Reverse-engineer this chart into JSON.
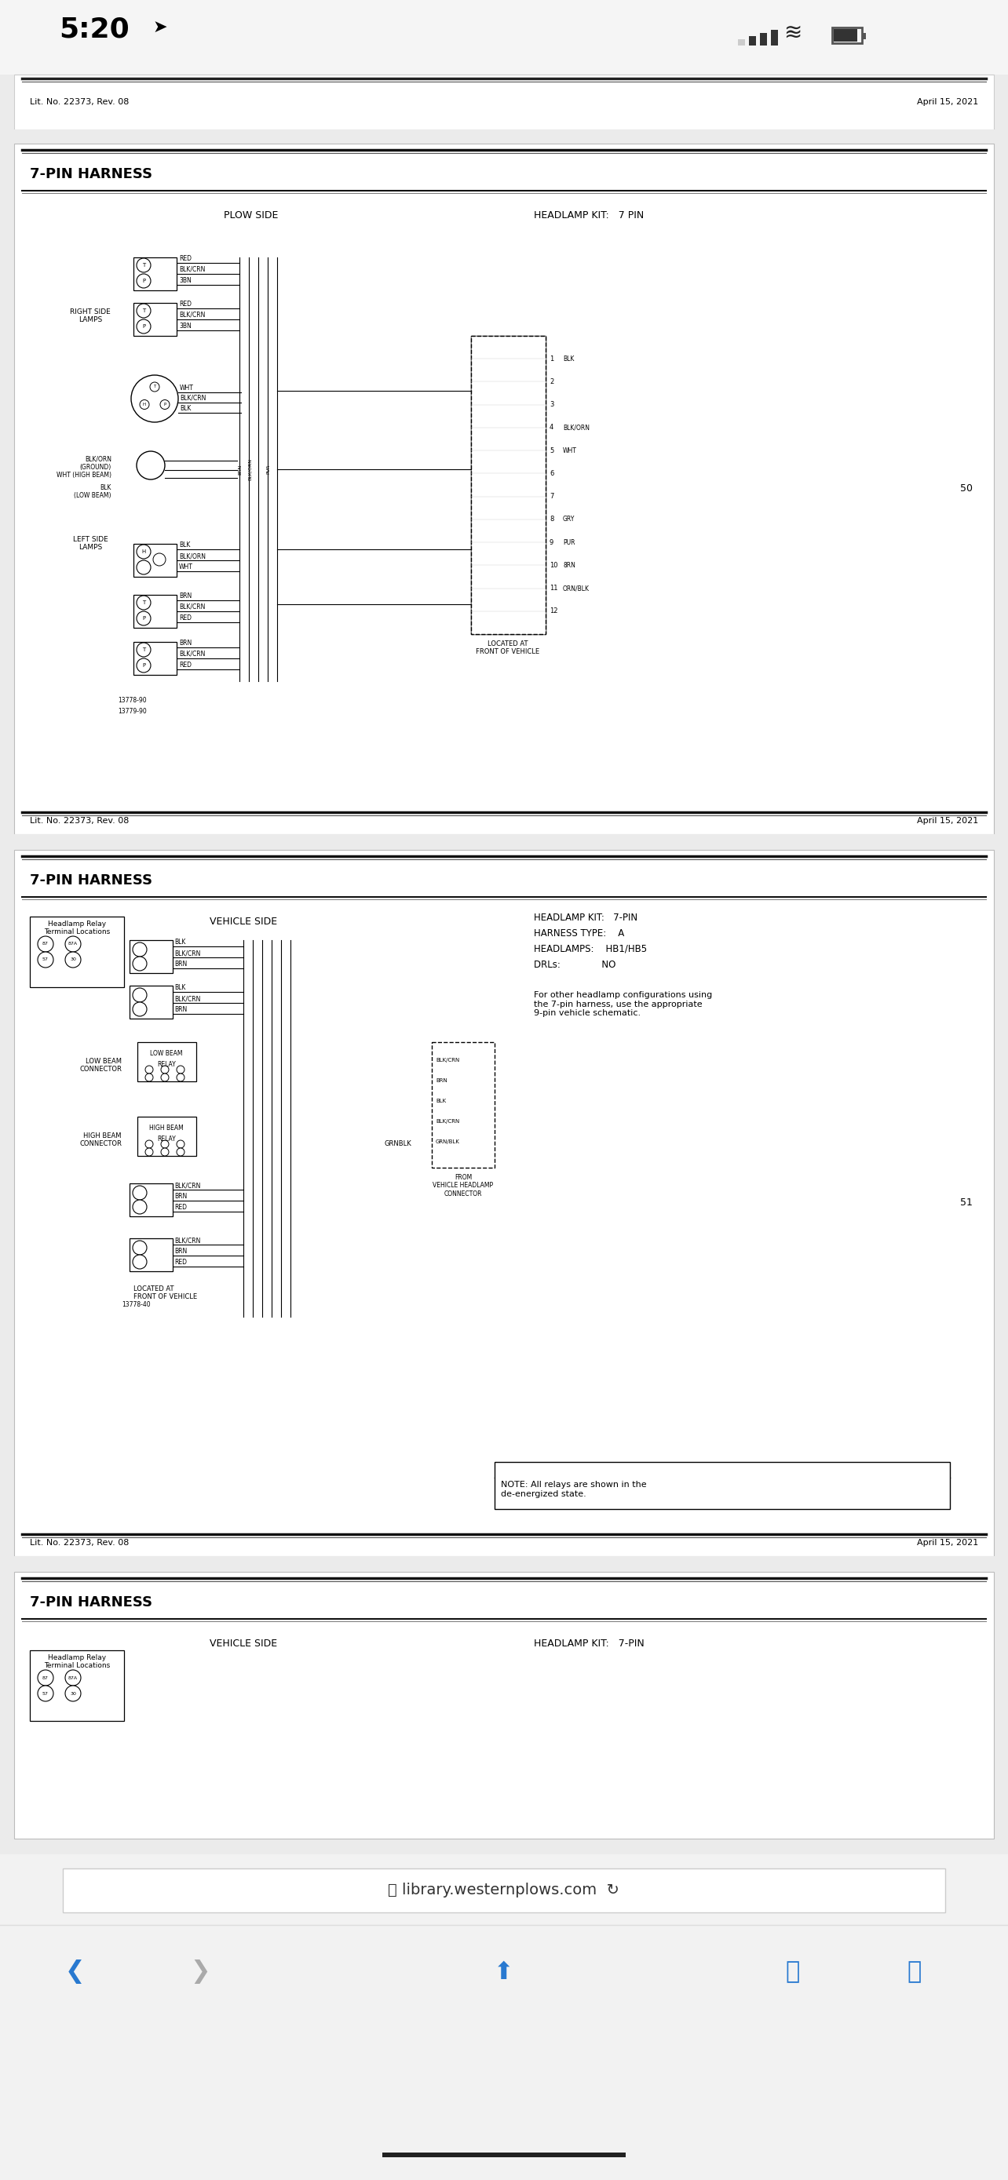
{
  "bg_color": "#ebebeb",
  "page_bg": "#ffffff",
  "status_bg": "#f5f5f5",
  "status_time": "5:20",
  "lit_no": "Lit. No. 22373, Rev. 08",
  "date": "April 15, 2021",
  "section_title": "7-PIN HARNESS",
  "plow_side_label": "PLOW SIDE",
  "headlamp_kit_label": "HEADLAMP KIT:   7 PIN",
  "page_number_1": "50",
  "page_number_2": "51",
  "vehicle_side_label": "VEHICLE SIDE",
  "headlamp_kit_label2": "HEADLAMP KIT:   7-PIN",
  "harness_type": "HARNESS TYPE:    A",
  "headlamps": "HEADLAMPS:    HB1/HB5",
  "drls": "DRLs:              NO",
  "relay_note": "NOTE: All relays are shown in the\nde-energized state.",
  "relay_terminal_label": "Headlamp Relay\nTerminal Locations",
  "other_config_note": "For other headlamp configurations using\nthe 7-pin harness, use the appropriate\n9-pin vehicle schematic.",
  "located_at": "LOCATED AT\nFRONT OF VEHICLE",
  "url": "library.westernplows.com",
  "right_side_lamps_label": "RIGHT SIDE\nLAMPS",
  "left_side_lamps_label": "LEFT SIDE\nLAMPS"
}
